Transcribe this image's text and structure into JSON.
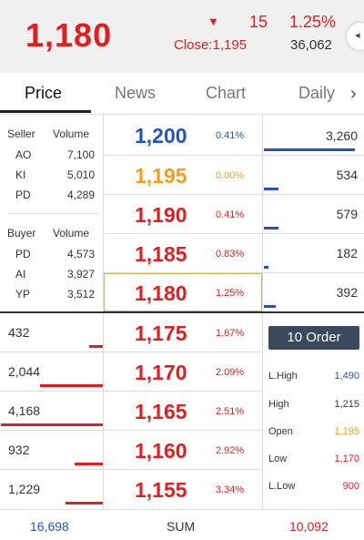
{
  "header": {
    "price": "1,180",
    "change_arrow": "▼",
    "change": "15",
    "change_pct": "1.25%",
    "close_label": "Close:1,195",
    "volume": "36,062",
    "side_button_icon": "◂"
  },
  "tabs": [
    {
      "label": "Price",
      "active": true
    },
    {
      "label": "News",
      "active": false
    },
    {
      "label": "Chart",
      "active": false
    },
    {
      "label": "Daily",
      "active": false
    }
  ],
  "tab_more_icon": "›",
  "sellers": {
    "header_name": "Seller",
    "header_volume": "Volume",
    "rows": [
      {
        "name": "AO",
        "volume": "7,100"
      },
      {
        "name": "KI",
        "volume": "5,010"
      },
      {
        "name": "PD",
        "volume": "4,289"
      }
    ]
  },
  "buyers": {
    "header_name": "Buyer",
    "header_volume": "Volume",
    "rows": [
      {
        "name": "PD",
        "volume": "4,573"
      },
      {
        "name": "AI",
        "volume": "3,927"
      },
      {
        "name": "YP",
        "volume": "3,512"
      }
    ]
  },
  "ladder": [
    {
      "price": "1,200",
      "pct": "0.41%",
      "color": "#2255bb",
      "ask": "3,260",
      "bar_fraction": 0.95
    },
    {
      "price": "1,195",
      "pct": "0.00%",
      "color": "#f0a020",
      "ask": "534",
      "bar_fraction": 0.15
    },
    {
      "price": "1,190",
      "pct": "0.41%",
      "color": "#e02020",
      "ask": "579",
      "bar_fraction": 0.15
    },
    {
      "price": "1,185",
      "pct": "0.83%",
      "color": "#e02020",
      "ask": "182",
      "bar_fraction": 0.05
    },
    {
      "price": "1,180",
      "pct": "1.25%",
      "color": "#e02020",
      "ask": "392",
      "bar_fraction": 0.12
    },
    {
      "price": "1,175",
      "pct": "1.67%",
      "color": "#e02020",
      "bid": "432",
      "bar_fraction": 0.13
    },
    {
      "price": "1,170",
      "pct": "2.09%",
      "color": "#e02020",
      "bid": "2,044",
      "bar_fraction": 0.62
    },
    {
      "price": "1,165",
      "pct": "2.51%",
      "color": "#e02020",
      "bid": "4,168",
      "bar_fraction": 1.0
    },
    {
      "price": "1,160",
      "pct": "2.92%",
      "color": "#e02020",
      "bid": "932",
      "bar_fraction": 0.28
    },
    {
      "price": "1,155",
      "pct": "3.34%",
      "color": "#e02020",
      "bid": "1,229",
      "bar_fraction": 0.37
    }
  ],
  "order_button": "10 Order",
  "stats": [
    {
      "label": "L.High",
      "value": "1,490",
      "color": "#2255bb"
    },
    {
      "label": "High",
      "value": "1,215",
      "color": "#333333"
    },
    {
      "label": "Open",
      "value": "1,195",
      "color": "#f0a020"
    },
    {
      "label": "Low",
      "value": "1,170",
      "color": "#e02020"
    },
    {
      "label": "L.Low",
      "value": "900",
      "color": "#e02020"
    }
  ],
  "footer": {
    "left": "16,698",
    "middle": "SUM",
    "right": "10,092"
  }
}
